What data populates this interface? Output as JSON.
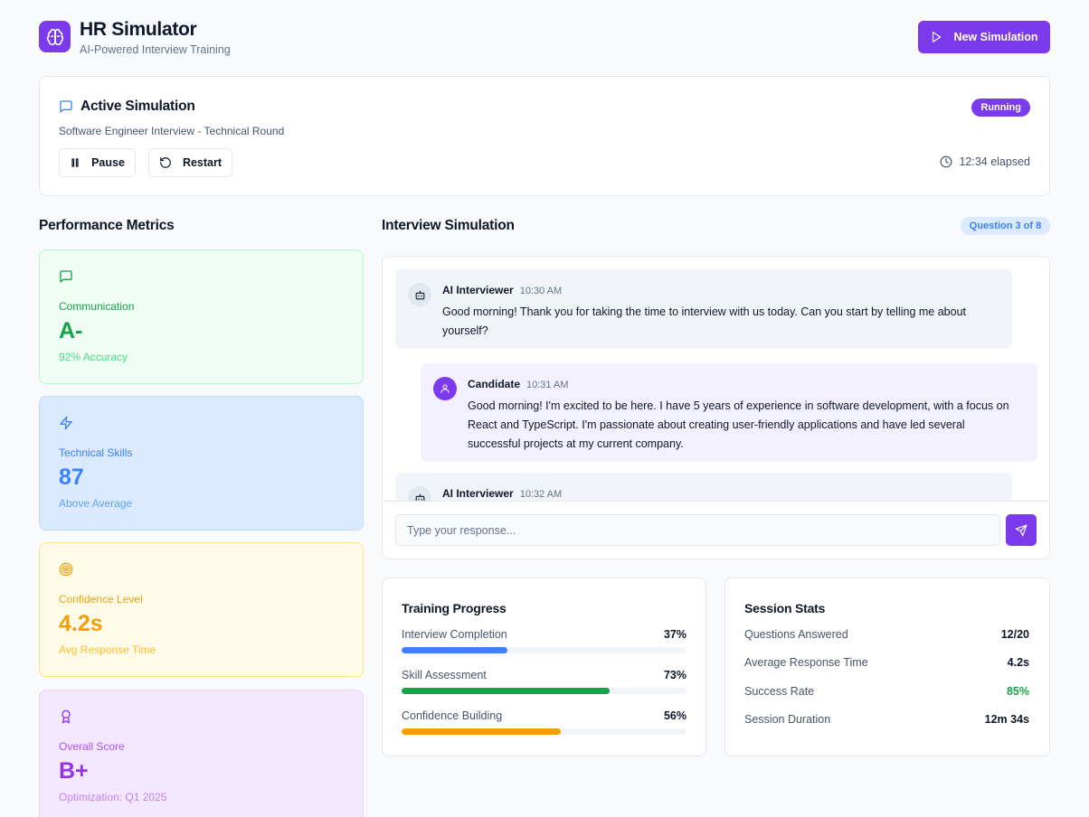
{
  "header": {
    "title": "HR Simulator",
    "subtitle": "AI-Powered Interview Training",
    "logo_icon": "brain-icon",
    "new_simulation_label": "New Simulation"
  },
  "active": {
    "title": "Active Simulation",
    "subtitle": "Software Engineer Interview - Technical Round",
    "status": "Running",
    "pause_label": "Pause",
    "restart_label": "Restart",
    "elapsed": "12:34 elapsed"
  },
  "metrics": {
    "heading": "Performance Metrics",
    "items": [
      {
        "label": "Communication",
        "value": "A-",
        "note": "92% Accuracy",
        "icon": "message-square-icon"
      },
      {
        "label": "Technical Skills",
        "value": "87",
        "note": "Above Average",
        "icon": "zap-icon"
      },
      {
        "label": "Confidence Level",
        "value": "4.2s",
        "note": "Avg Response Time",
        "icon": "target-icon"
      },
      {
        "label": "Overall Score",
        "value": "B+",
        "note": "Optimization: Q1 2025",
        "icon": "award-icon"
      }
    ]
  },
  "interview": {
    "heading": "Interview Simulation",
    "question_badge": "Question 3 of 8",
    "messages": [
      {
        "sender": "AI Interviewer",
        "time": "10:30 AM",
        "text": "Good morning! Thank you for taking the time to interview with us today. Can you start by telling me about yourself?"
      },
      {
        "sender": "Candidate",
        "time": "10:31 AM",
        "text": "Good morning! I'm excited to be here. I have 5 years of experience in software development, with a focus on React and TypeScript. I'm passionate about creating user-friendly applications and have led several successful projects at my current company."
      },
      {
        "sender": "AI Interviewer",
        "time": "10:32 AM",
        "text": ""
      }
    ],
    "input_placeholder": "Type your response..."
  },
  "training": {
    "title": "Training Progress",
    "items": [
      {
        "label": "Interview Completion",
        "value": "37%",
        "fraction": 0.37,
        "color": "#3b82f6"
      },
      {
        "label": "Skill Assessment",
        "value": "73%",
        "fraction": 0.73,
        "color": "#16a34a"
      },
      {
        "label": "Confidence Building",
        "value": "56%",
        "fraction": 0.56,
        "color": "#f59e0b"
      }
    ]
  },
  "stats": {
    "title": "Session Stats",
    "items": [
      {
        "label": "Questions Answered",
        "value": "12/20"
      },
      {
        "label": "Average Response Time",
        "value": "4.2s"
      },
      {
        "label": "Success Rate",
        "value": "85%"
      },
      {
        "label": "Session Duration",
        "value": "12m 34s"
      }
    ]
  },
  "colors": {
    "accent": "#7c3aed",
    "success": "#16a34a",
    "info": "#3b82f6",
    "warning": "#f59e0b"
  }
}
